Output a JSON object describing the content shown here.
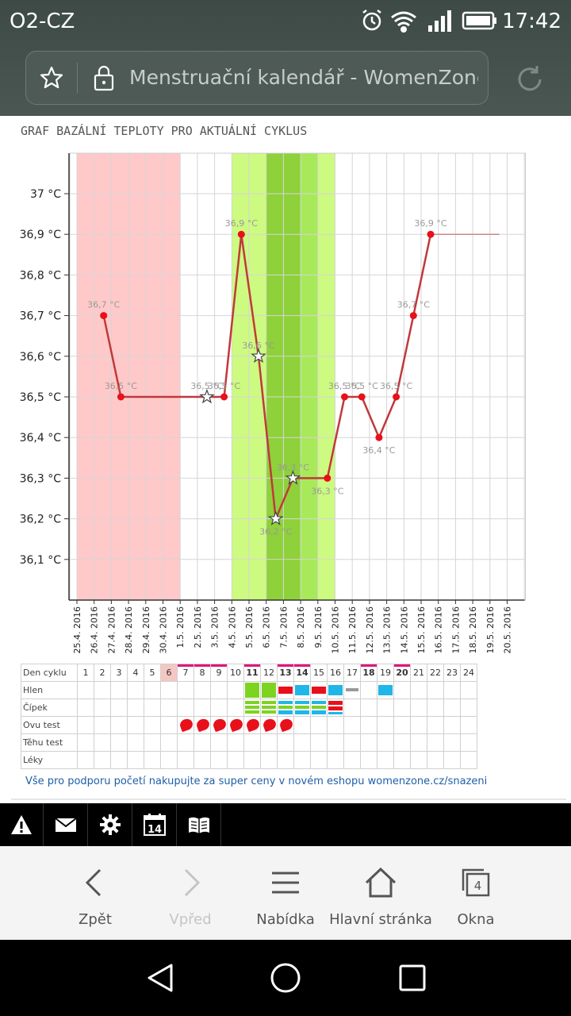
{
  "status": {
    "carrier": "O2-CZ",
    "time": "17:42"
  },
  "browser": {
    "page_title": "Menstruační kalendář - WomenZone.c"
  },
  "chart_title": "GRAF BAZÁLNÍ TEPLOTY PRO AKTUÁLNÍ CYKLUS",
  "chart_data": {
    "type": "line",
    "y_unit": "°C",
    "ylim": [
      36.0,
      37.1
    ],
    "y_ticks": [
      "37 °C",
      "36,9 °C",
      "36,8 °C",
      "36,7 °C",
      "36,6 °C",
      "36,5 °C",
      "36,4 °C",
      "36,3 °C",
      "36,2 °C",
      "36,1 °C"
    ],
    "y_tick_values": [
      37.0,
      36.9,
      36.8,
      36.7,
      36.6,
      36.5,
      36.4,
      36.3,
      36.2,
      36.1
    ],
    "x_dates": [
      "25.4.2016",
      "26.4.2016",
      "27.4.2016",
      "28.4.2016",
      "29.4.2016",
      "30.4.2016",
      "1.5.2016",
      "2.5.2016",
      "3.5.2016",
      "4.5.2016",
      "5.5.2016",
      "6.5.2016",
      "7.5.2016",
      "8.5.2016",
      "9.5.2016",
      "10.5.2016",
      "11.5.2016",
      "12.5.2016",
      "13.5.2016",
      "14.5.2016",
      "15.5.2016",
      "16.5.2016",
      "17.5.2016",
      "18.5.2016",
      "19.5.2016",
      "20.5.2016"
    ],
    "points": [
      {
        "date": "26.4.2016",
        "value": 36.7,
        "label": "36,7 °C",
        "marker": "dot"
      },
      {
        "date": "27.4.2016",
        "value": 36.5,
        "label": "36,5 °C",
        "marker": "dot"
      },
      {
        "date": "2.5.2016",
        "value": 36.5,
        "label": "36,5 °C",
        "marker": "star"
      },
      {
        "date": "3.5.2016",
        "value": 36.5,
        "label": "36,5 °C",
        "marker": "dot"
      },
      {
        "date": "4.5.2016",
        "value": 36.9,
        "label": "36,9 °C",
        "marker": "dot"
      },
      {
        "date": "5.5.2016",
        "value": 36.6,
        "label": "36,6 °C",
        "marker": "star"
      },
      {
        "date": "6.5.2016",
        "value": 36.2,
        "label": "36,2 °C",
        "marker": "star"
      },
      {
        "date": "7.5.2016",
        "value": 36.3,
        "label": "36,3 °C",
        "marker": "star"
      },
      {
        "date": "9.5.2016",
        "value": 36.3,
        "label": "36,3 °C",
        "marker": "dot"
      },
      {
        "date": "10.5.2016",
        "value": 36.5,
        "label": "36,5 °C",
        "marker": "dot"
      },
      {
        "date": "11.5.2016",
        "value": 36.5,
        "label": "36,5 °C",
        "marker": "dot"
      },
      {
        "date": "12.5.2016",
        "value": 36.4,
        "label": "36,4 °C",
        "marker": "dot"
      },
      {
        "date": "13.5.2016",
        "value": 36.5,
        "label": "36,5 °C",
        "marker": "dot"
      },
      {
        "date": "14.5.2016",
        "value": 36.7,
        "label": "36,7 °C",
        "marker": "dot"
      },
      {
        "date": "15.5.2016",
        "value": 36.9,
        "label": "36,9 °C",
        "marker": "dot"
      }
    ],
    "extension_to": "19.5.2016",
    "bands": [
      {
        "from": "25.4.2016",
        "to": "30.4.2016",
        "kind": "period",
        "color": "#ffc9c9"
      },
      {
        "from": "4.5.2016",
        "to": "9.5.2016",
        "kind": "fertile",
        "color": "#cdfa80"
      },
      {
        "from": "6.5.2016",
        "to": "8.5.2016",
        "kind": "fertile-peak",
        "color": "#a8e95a"
      },
      {
        "from": "6.5.2016",
        "to": "7.5.2016",
        "kind": "ovulation",
        "color": "#8ed13a"
      }
    ],
    "line_color": "#c0393b",
    "dot_color": "#e8101b",
    "grid": true
  },
  "table": {
    "labels": [
      "Den cyklu",
      "Hlen",
      "Čípek",
      "Ovu test",
      "Těhu test",
      "Léky"
    ],
    "days": [
      "1",
      "2",
      "3",
      "4",
      "5",
      "6",
      "7",
      "8",
      "9",
      "10",
      "11",
      "12",
      "13",
      "14",
      "15",
      "16",
      "17",
      "18",
      "19",
      "20",
      "21",
      "22",
      "23",
      "24"
    ]
  },
  "eshop_text": "Vše pro podporu početí nakupujte za super ceny v novém eshopu womenzone.cz/snazeni",
  "toolbar": {
    "icons": [
      "warning-icon",
      "mail-icon",
      "gear-icon",
      "calendar-icon",
      "book-icon"
    ],
    "calendar_day": "14"
  },
  "nav": {
    "back": "Zpět",
    "forward": "Vpřed",
    "menu": "Nabídka",
    "home": "Hlavní stránka",
    "windows": "Okna",
    "windows_count": "4"
  }
}
